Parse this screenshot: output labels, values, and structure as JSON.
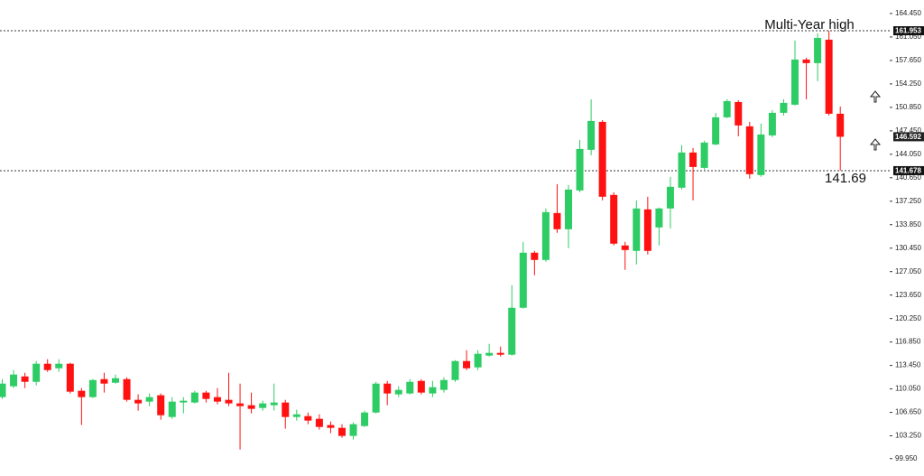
{
  "chart_data": {
    "type": "candlestick",
    "open": [
      108.86,
      110.43,
      111.86,
      111.08,
      113.7,
      113.04,
      113.7,
      109.78,
      108.86,
      111.47,
      110.95,
      111.47,
      108.47,
      108.21,
      109.13,
      105.98,
      108.08,
      108.08,
      109.52,
      108.86,
      108.47,
      107.95,
      107.69,
      107.29,
      107.69,
      108.08,
      105.98,
      106.11,
      105.72,
      104.81,
      104.41,
      103.24,
      104.67,
      106.63,
      110.82,
      109.26,
      109.39,
      111.21,
      109.39,
      109.91,
      111.34,
      114.09,
      113.17,
      114.88,
      115.27,
      115.01,
      121.81,
      129.79,
      128.74,
      135.54,
      133.19,
      138.81,
      144.7,
      148.75,
      138.16,
      130.84,
      130.05,
      136.07,
      133.45,
      136.2,
      139.21,
      144.31,
      142.08,
      145.48,
      149.41,
      151.63,
      148.1,
      141.04,
      146.79,
      150.06,
      151.24,
      157.78,
      157.26,
      160.66,
      149.93
    ],
    "high": [
      111.47,
      112.78,
      112.39,
      114.09,
      114.35,
      114.35,
      113.83,
      110.17,
      111.47,
      112.39,
      112.13,
      111.73,
      109.26,
      109.39,
      109.39,
      108.86,
      108.86,
      109.78,
      109.78,
      110.17,
      112.39,
      110.82,
      109.52,
      108.34,
      110.82,
      108.47,
      107.03,
      106.63,
      106.37,
      105.33,
      104.94,
      105.2,
      106.9,
      111.08,
      111.21,
      110.43,
      111.47,
      111.47,
      111.21,
      111.73,
      114.22,
      115.66,
      115.66,
      116.58,
      116.19,
      125.08,
      131.36,
      130.05,
      136.2,
      139.73,
      139.6,
      146.14,
      152.02,
      149.01,
      138.55,
      131.36,
      137.37,
      137.9,
      136.33,
      140.78,
      145.35,
      144.96,
      146.01,
      150.06,
      152.02,
      151.89,
      148.75,
      148.49,
      150.45,
      152.02,
      160.53,
      158.04,
      161.57,
      161.95,
      150.98
    ],
    "low": [
      108.6,
      110.17,
      110.17,
      110.56,
      112.52,
      112.52,
      109.39,
      104.81,
      108.73,
      109.52,
      110.82,
      108.21,
      106.9,
      107.55,
      105.59,
      105.72,
      106.5,
      107.95,
      108.08,
      107.82,
      107.55,
      101.27,
      106.5,
      106.9,
      106.9,
      104.28,
      105.46,
      104.94,
      104.15,
      103.63,
      102.98,
      102.72,
      104.54,
      106.5,
      107.69,
      108.86,
      109.26,
      109.26,
      108.86,
      109.52,
      111.08,
      112.78,
      112.78,
      114.75,
      114.75,
      114.88,
      121.68,
      126.52,
      128.48,
      132.67,
      130.44,
      138.55,
      143.92,
      137.37,
      130.84,
      127.3,
      128.09,
      129.53,
      130.84,
      133.32,
      138.94,
      137.37,
      141.82,
      145.35,
      149.28,
      146.66,
      140.52,
      140.78,
      146.53,
      149.67,
      151.11,
      152.02,
      154.64,
      149.67,
      141.69
    ],
    "close": [
      110.82,
      112.13,
      111.08,
      113.7,
      112.78,
      113.7,
      109.65,
      108.86,
      111.34,
      110.82,
      111.6,
      108.47,
      107.95,
      108.86,
      106.24,
      108.21,
      108.34,
      109.52,
      108.6,
      108.21,
      107.95,
      107.55,
      107.16,
      107.95,
      108.08,
      105.98,
      106.37,
      105.46,
      104.54,
      104.41,
      103.24,
      104.94,
      106.63,
      110.82,
      109.39,
      109.91,
      111.08,
      109.52,
      110.3,
      111.34,
      114.09,
      113.04,
      115.14,
      115.27,
      115.01,
      121.81,
      129.79,
      128.74,
      135.67,
      133.19,
      138.94,
      144.83,
      148.88,
      137.9,
      131.1,
      130.18,
      136.2,
      130.05,
      136.2,
      139.34,
      144.31,
      142.21,
      145.75,
      149.41,
      151.76,
      148.23,
      141.17,
      146.92,
      150.06,
      151.5,
      157.78,
      157.26,
      160.92,
      149.93,
      146.59
    ],
    "up_color": "#2ecc64",
    "down_color": "#ff1111",
    "ylim": [
      97.43,
      166.41
    ],
    "yticks": [
      {
        "value": 164.45,
        "label": "164.450"
      },
      {
        "value": 161.05,
        "label": "161.050"
      },
      {
        "value": 157.65,
        "label": "157.650"
      },
      {
        "value": 154.25,
        "label": "154.250"
      },
      {
        "value": 150.85,
        "label": "150.850"
      },
      {
        "value": 147.45,
        "label": "147.450"
      },
      {
        "value": 144.05,
        "label": "144.050"
      },
      {
        "value": 140.65,
        "label": "140.650"
      },
      {
        "value": 137.25,
        "label": "137.250"
      },
      {
        "value": 133.85,
        "label": "133.850"
      },
      {
        "value": 130.45,
        "label": "130.450"
      },
      {
        "value": 127.05,
        "label": "127.050"
      },
      {
        "value": 123.65,
        "label": "123.650"
      },
      {
        "value": 120.25,
        "label": "120.250"
      },
      {
        "value": 116.85,
        "label": "116.850"
      },
      {
        "value": 113.45,
        "label": "113.450"
      },
      {
        "value": 110.05,
        "label": "110.050"
      },
      {
        "value": 106.65,
        "label": "106.650"
      },
      {
        "value": 103.25,
        "label": "103.250"
      },
      {
        "value": 99.95,
        "label": "99.950"
      }
    ],
    "price_lines": [
      161.953,
      141.678
    ],
    "last_price": 146.592,
    "annotations": [
      "Multi-Year high",
      "141.69"
    ]
  }
}
